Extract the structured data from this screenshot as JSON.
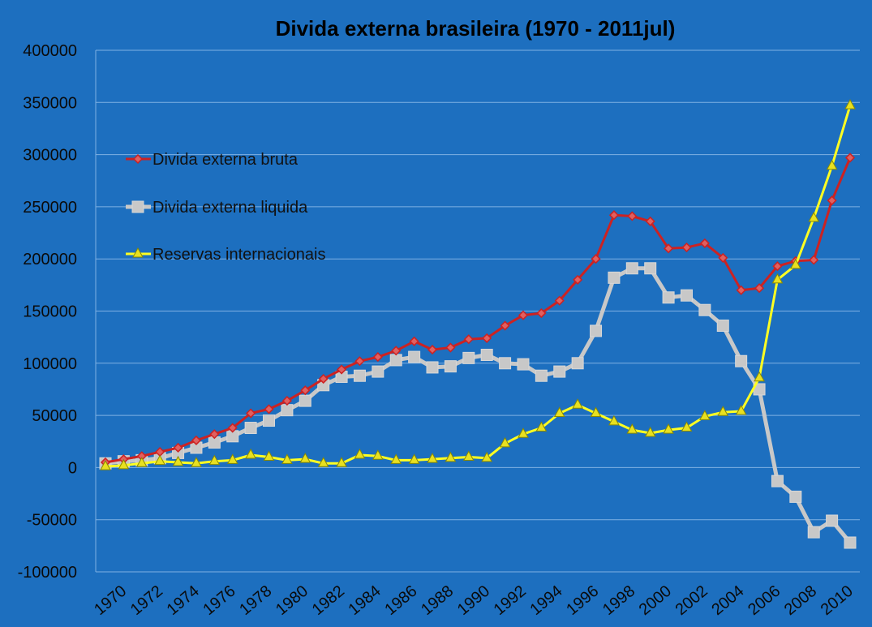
{
  "chart_data": {
    "type": "line",
    "title": "Divida externa brasileira (1970 - 2011jul)",
    "xlabel": "",
    "ylabel": "",
    "ylim": [
      -100000,
      400000
    ],
    "yticks": [
      "400000",
      "350000",
      "300000",
      "250000",
      "200000",
      "150000",
      "100000",
      "50000",
      "0",
      "-50000",
      "-100000"
    ],
    "yticks_values": [
      400000,
      350000,
      300000,
      250000,
      200000,
      150000,
      100000,
      50000,
      0,
      -50000,
      -100000
    ],
    "xticks": [
      "1970",
      "1972",
      "1974",
      "1976",
      "1978",
      "1980",
      "1982",
      "1984",
      "1986",
      "1988",
      "1990",
      "1992",
      "1994",
      "1996",
      "1998",
      "2000",
      "2002",
      "2004",
      "2006",
      "2008",
      "2010"
    ],
    "x": [
      1970,
      1971,
      1972,
      1973,
      1974,
      1975,
      1976,
      1977,
      1978,
      1979,
      1980,
      1981,
      1982,
      1983,
      1984,
      1985,
      1986,
      1987,
      1988,
      1989,
      1990,
      1991,
      1992,
      1993,
      1994,
      1995,
      1996,
      1997,
      1998,
      1999,
      2000,
      2001,
      2002,
      2003,
      2004,
      2005,
      2006,
      2007,
      2008,
      2009,
      2010,
      2011
    ],
    "grid": "horizontal",
    "legend_position": "upper-left",
    "series": [
      {
        "name": "Divida externa bruta",
        "color": "#cc2222",
        "marker": "diamond",
        "values": [
          5000,
          8000,
          11000,
          15000,
          19000,
          26000,
          32000,
          38000,
          52000,
          56000,
          64000,
          74000,
          85000,
          94000,
          102000,
          106000,
          112000,
          121000,
          113000,
          115000,
          123000,
          124000,
          136000,
          146000,
          148000,
          160000,
          180000,
          200000,
          242000,
          241000,
          236000,
          210000,
          211000,
          215000,
          201000,
          170000,
          172000,
          193000,
          198000,
          199000,
          256000,
          297000
        ]
      },
      {
        "name": "Divida externa liquida",
        "color": "#c8c8c8",
        "marker": "square",
        "values": [
          4000,
          6000,
          7000,
          9000,
          14000,
          19000,
          24000,
          30000,
          38000,
          45000,
          55000,
          64000,
          79000,
          87000,
          88000,
          92000,
          103000,
          106000,
          96000,
          97000,
          105000,
          108000,
          100000,
          99000,
          88000,
          92000,
          100000,
          131000,
          182000,
          191000,
          191000,
          163000,
          165000,
          151000,
          136000,
          102000,
          75000,
          -13000,
          -28000,
          -62000,
          -51000,
          -72000
        ]
      },
      {
        "name": "Reservas internacionais",
        "color": "#ffff22",
        "marker": "triangle",
        "values": [
          1000,
          2000,
          4000,
          6000,
          5000,
          4000,
          6000,
          7000,
          12000,
          10000,
          7000,
          8000,
          4000,
          4000,
          12000,
          11000,
          7000,
          7000,
          8000,
          9000,
          10000,
          9000,
          23000,
          32000,
          38000,
          52000,
          60000,
          52000,
          44000,
          36000,
          33000,
          36000,
          38000,
          49000,
          53000,
          54000,
          86000,
          180000,
          194000,
          239000,
          289000,
          347000
        ]
      }
    ]
  }
}
